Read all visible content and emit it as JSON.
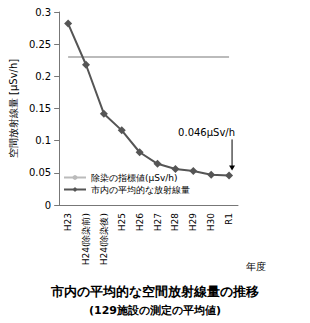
{
  "chart_data": {
    "type": "line",
    "title": "市内の平均的な空間放射線量の推移",
    "subtitle": "(129施設の測定の平均値)",
    "x_label": "年度",
    "y_label": "空間放射線量 [μSv/h]",
    "categories": [
      "H23",
      "H24(除染前)",
      "H24(除染後)",
      "H25",
      "H26",
      "H27",
      "H28",
      "H29",
      "H30",
      "R1"
    ],
    "series": [
      {
        "name": "除染の指標値(μSv/h)",
        "color": "#bbbbbb",
        "marker": "none",
        "line_style": "solid",
        "values": [
          0.23,
          0.23,
          0.23,
          0.23,
          0.23,
          0.23,
          0.23,
          0.23,
          0.23,
          0.23
        ]
      },
      {
        "name": "市内の平均的な放射線量",
        "color": "#555555",
        "marker": "diamond",
        "line_style": "solid",
        "values": [
          0.282,
          0.218,
          0.142,
          0.116,
          0.082,
          0.064,
          0.056,
          0.053,
          0.047,
          0.046
        ]
      }
    ],
    "ylim": [
      0,
      0.3
    ],
    "yticks": [
      0,
      0.05,
      0.1,
      0.15,
      0.2,
      0.25,
      0.3
    ],
    "grid": false,
    "legend": "lower left",
    "annotations": [
      {
        "text": "0.046μSv/h",
        "x": "R1",
        "y": 0.046
      }
    ]
  }
}
